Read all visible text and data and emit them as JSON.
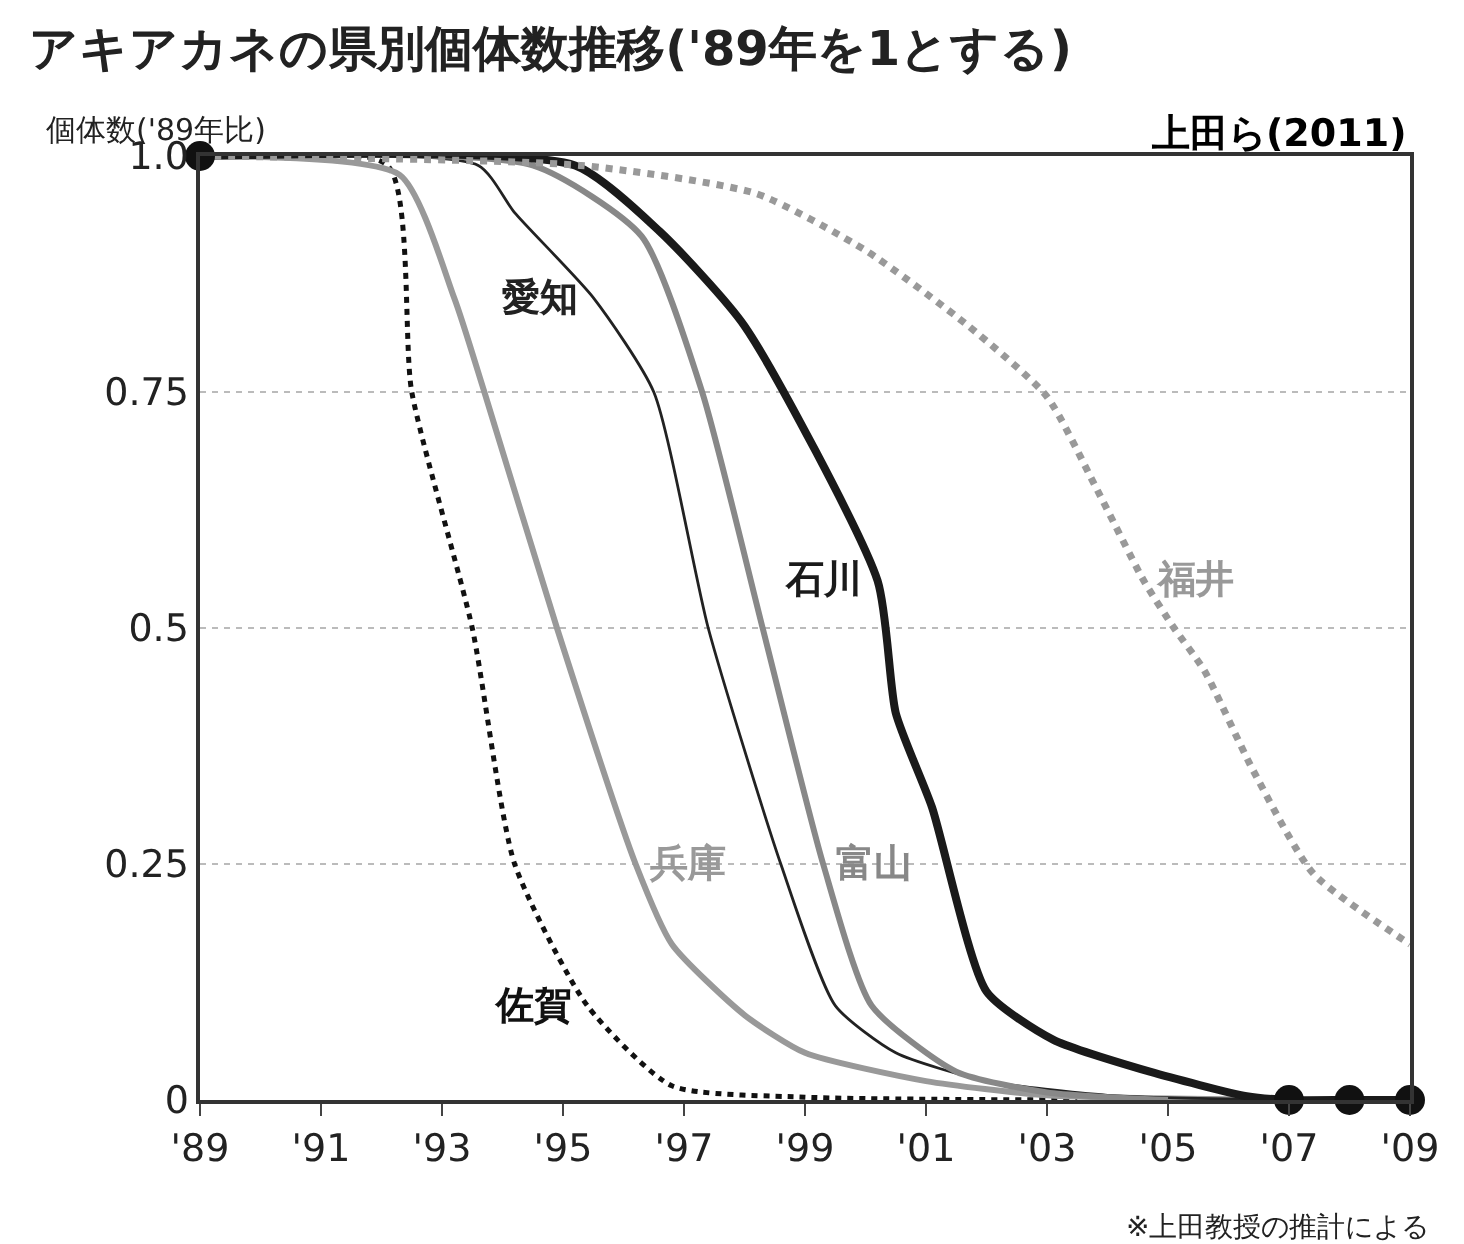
{
  "chart_data": {
    "type": "line",
    "title": "アキアカネの県別個体数推移('89年を1とする)",
    "ylabel": "個体数('89年比)",
    "annotations": [
      "上田ら(2011)",
      "※上田教授の推計による"
    ],
    "xlim": [
      1989,
      2009
    ],
    "xticks": [
      {
        "value": 1989,
        "label": "'89"
      },
      {
        "value": 1991,
        "label": "'91"
      },
      {
        "value": 1993,
        "label": "'93"
      },
      {
        "value": 1995,
        "label": "'95"
      },
      {
        "value": 1997,
        "label": "'97"
      },
      {
        "value": 1999,
        "label": "'99"
      },
      {
        "value": 2001,
        "label": "'01"
      },
      {
        "value": 2003,
        "label": "'03"
      },
      {
        "value": 2005,
        "label": "'05"
      },
      {
        "value": 2007,
        "label": "'07"
      },
      {
        "value": 2009,
        "label": "'09"
      }
    ],
    "ylim": [
      0,
      1.0
    ],
    "yticks": [
      0,
      0.25,
      0.5,
      0.75,
      {
        "value": 1.0,
        "label": "1.0"
      }
    ],
    "grid": "y",
    "series": [
      {
        "name": "佐賀",
        "color": "#111111",
        "line_style": "dotted",
        "x": [
          1989,
          1992.1,
          1992.5,
          1993.5,
          1994.2,
          1995.4,
          1996.8,
          1999,
          2003.5
        ],
        "values": [
          1,
          0.99,
          0.75,
          0.5,
          0.25,
          0.1,
          0.015,
          0.003,
          0
        ]
      },
      {
        "name": "兵庫",
        "color": "#999999",
        "line_style": "solid",
        "x": [
          1989,
          1992.3,
          1993.2,
          1993.7,
          1994.9,
          1996.2,
          1996.8,
          1998,
          1999,
          2001,
          2003,
          2007
        ],
        "values": [
          1,
          0.98,
          0.85,
          0.75,
          0.5,
          0.25,
          0.165,
          0.09,
          0.05,
          0.02,
          0.005,
          0
        ]
      },
      {
        "name": "愛知",
        "color": "#222222",
        "line_style": "solid",
        "x": [
          1989,
          1993.6,
          1994.2,
          1995.5,
          1996.5,
          1997.4,
          1998.6,
          1999.5,
          2000.5,
          2002,
          2004,
          2007
        ],
        "values": [
          1,
          0.99,
          0.94,
          0.85,
          0.75,
          0.5,
          0.25,
          0.1,
          0.05,
          0.02,
          0.005,
          0
        ]
      },
      {
        "name": "富山",
        "color": "#888888",
        "line_style": "solid",
        "x": [
          1989,
          1994.5,
          1996.3,
          1997.3,
          1998.3,
          1999.3,
          2000.1,
          2001.5,
          2003,
          2005
        ],
        "values": [
          1,
          0.99,
          0.915,
          0.75,
          0.5,
          0.25,
          0.1,
          0.03,
          0.008,
          0
        ]
      },
      {
        "name": "石川",
        "color": "#1a1a1a",
        "line_style": "solid",
        "x": [
          1989,
          1995.2,
          1996.6,
          1998,
          2000.2,
          2000.5,
          2001.1,
          2002,
          2003.1,
          2004.7,
          2006.3,
          2007,
          2008,
          2009
        ],
        "values": [
          1,
          0.99,
          0.92,
          0.82,
          0.55,
          0.41,
          0.31,
          0.115,
          0.064,
          0.03,
          0.004,
          0,
          0,
          0
        ]
      },
      {
        "name": "福井",
        "color": "#999999",
        "line_style": "dotted",
        "x": [
          1989,
          1995.3,
          1998.2,
          2000,
          2001.7,
          2003,
          2003.8,
          2004.6,
          2005.1,
          2005.6,
          2006.4,
          2007.4,
          2009
        ],
        "values": [
          1,
          0.99,
          0.96,
          0.9,
          0.82,
          0.745,
          0.65,
          0.55,
          0.5,
          0.455,
          0.35,
          0.24,
          0.165
        ]
      },
      {
        "type": "scatter",
        "color": "#111111",
        "marker": "circle",
        "x": [
          1989,
          2007,
          2008,
          2009
        ],
        "values": [
          1,
          0,
          0,
          0
        ]
      }
    ]
  }
}
